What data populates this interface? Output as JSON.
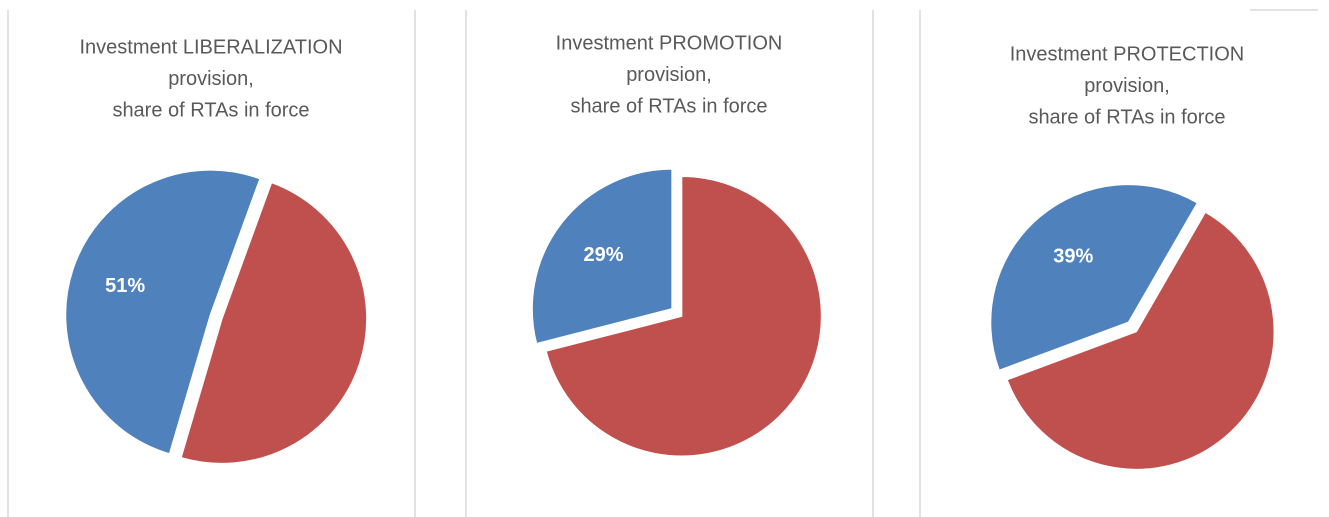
{
  "chart_data": [
    {
      "type": "pie",
      "title": [
        "Investment LIBERALIZATION",
        "provision,",
        "share of RTAs in force"
      ],
      "values": [
        51,
        49
      ],
      "value_labels": [
        "51%",
        null
      ],
      "colors": [
        "#4f81bd",
        "#c0504d"
      ]
    },
    {
      "type": "pie",
      "title": [
        "Investment PROMOTION",
        "provision,",
        "share of RTAs in force"
      ],
      "values": [
        29,
        71
      ],
      "value_labels": [
        "29%",
        null
      ],
      "colors": [
        "#4f81bd",
        "#c0504d"
      ]
    },
    {
      "type": "pie",
      "title": [
        "Investment PROTECTION",
        "provision,",
        "share of RTAs in force"
      ],
      "values": [
        39,
        61
      ],
      "value_labels": [
        "39%",
        null
      ],
      "colors": [
        "#4f81bd",
        "#c0504d"
      ]
    }
  ]
}
